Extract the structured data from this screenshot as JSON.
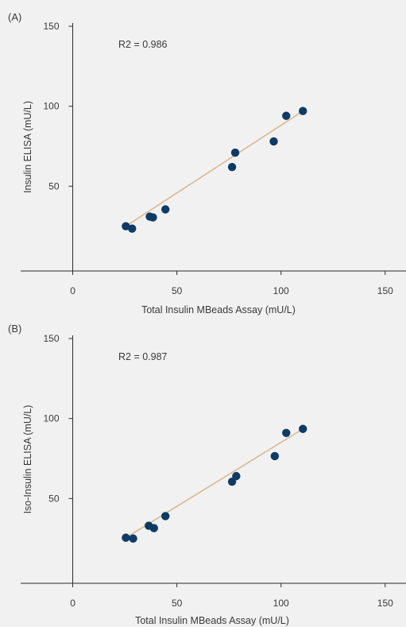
{
  "colors": {
    "background": "#f1f1f2",
    "axis": "#2b2b2b",
    "point": "#0d3b66",
    "fit_line": "#d8b98a",
    "text": "#3a3a3a"
  },
  "chart_data": [
    {
      "type": "scatter",
      "panel_label": "(A)",
      "annotation": "R2 = 0.986",
      "xlabel": "Total Insulin MBeads Assay (mU/L)",
      "ylabel": "Insulin ELISA (mU/L)",
      "xlim": [
        -25,
        160
      ],
      "ylim": [
        -3,
        152
      ],
      "x_ticks": [
        0,
        50,
        100,
        150
      ],
      "y_ticks": [
        50,
        100,
        150
      ],
      "grid": false,
      "points": [
        {
          "x": 25.5,
          "y": 25
        },
        {
          "x": 28.5,
          "y": 23.5
        },
        {
          "x": 37,
          "y": 31
        },
        {
          "x": 38.5,
          "y": 30.5
        },
        {
          "x": 44.5,
          "y": 35.5
        },
        {
          "x": 76.5,
          "y": 62
        },
        {
          "x": 78,
          "y": 71
        },
        {
          "x": 96.5,
          "y": 78
        },
        {
          "x": 102.5,
          "y": 94
        },
        {
          "x": 110.5,
          "y": 97
        }
      ],
      "fit_line": {
        "x": [
          25.5,
          110.5
        ],
        "y": [
          25,
          97
        ]
      }
    },
    {
      "type": "scatter",
      "panel_label": "(B)",
      "annotation": "R2 = 0.987",
      "xlabel": "Total Insulin MBeads Assay (mU/L)",
      "ylabel": "Iso-Insulin ELISA (mU/L)",
      "xlim": [
        -25,
        160
      ],
      "ylim": [
        -3,
        152
      ],
      "x_ticks": [
        0,
        50,
        100,
        150
      ],
      "y_ticks": [
        50,
        100,
        150
      ],
      "grid": false,
      "points": [
        {
          "x": 25.5,
          "y": 25.5
        },
        {
          "x": 29,
          "y": 25
        },
        {
          "x": 36.5,
          "y": 33
        },
        {
          "x": 39,
          "y": 31.5
        },
        {
          "x": 44.5,
          "y": 39
        },
        {
          "x": 76.5,
          "y": 60.5
        },
        {
          "x": 78.5,
          "y": 64
        },
        {
          "x": 97,
          "y": 76.5
        },
        {
          "x": 102.5,
          "y": 91
        },
        {
          "x": 110.5,
          "y": 93.5
        }
      ],
      "fit_line": {
        "x": [
          25.5,
          110.5
        ],
        "y": [
          25.5,
          93.5
        ]
      }
    }
  ]
}
